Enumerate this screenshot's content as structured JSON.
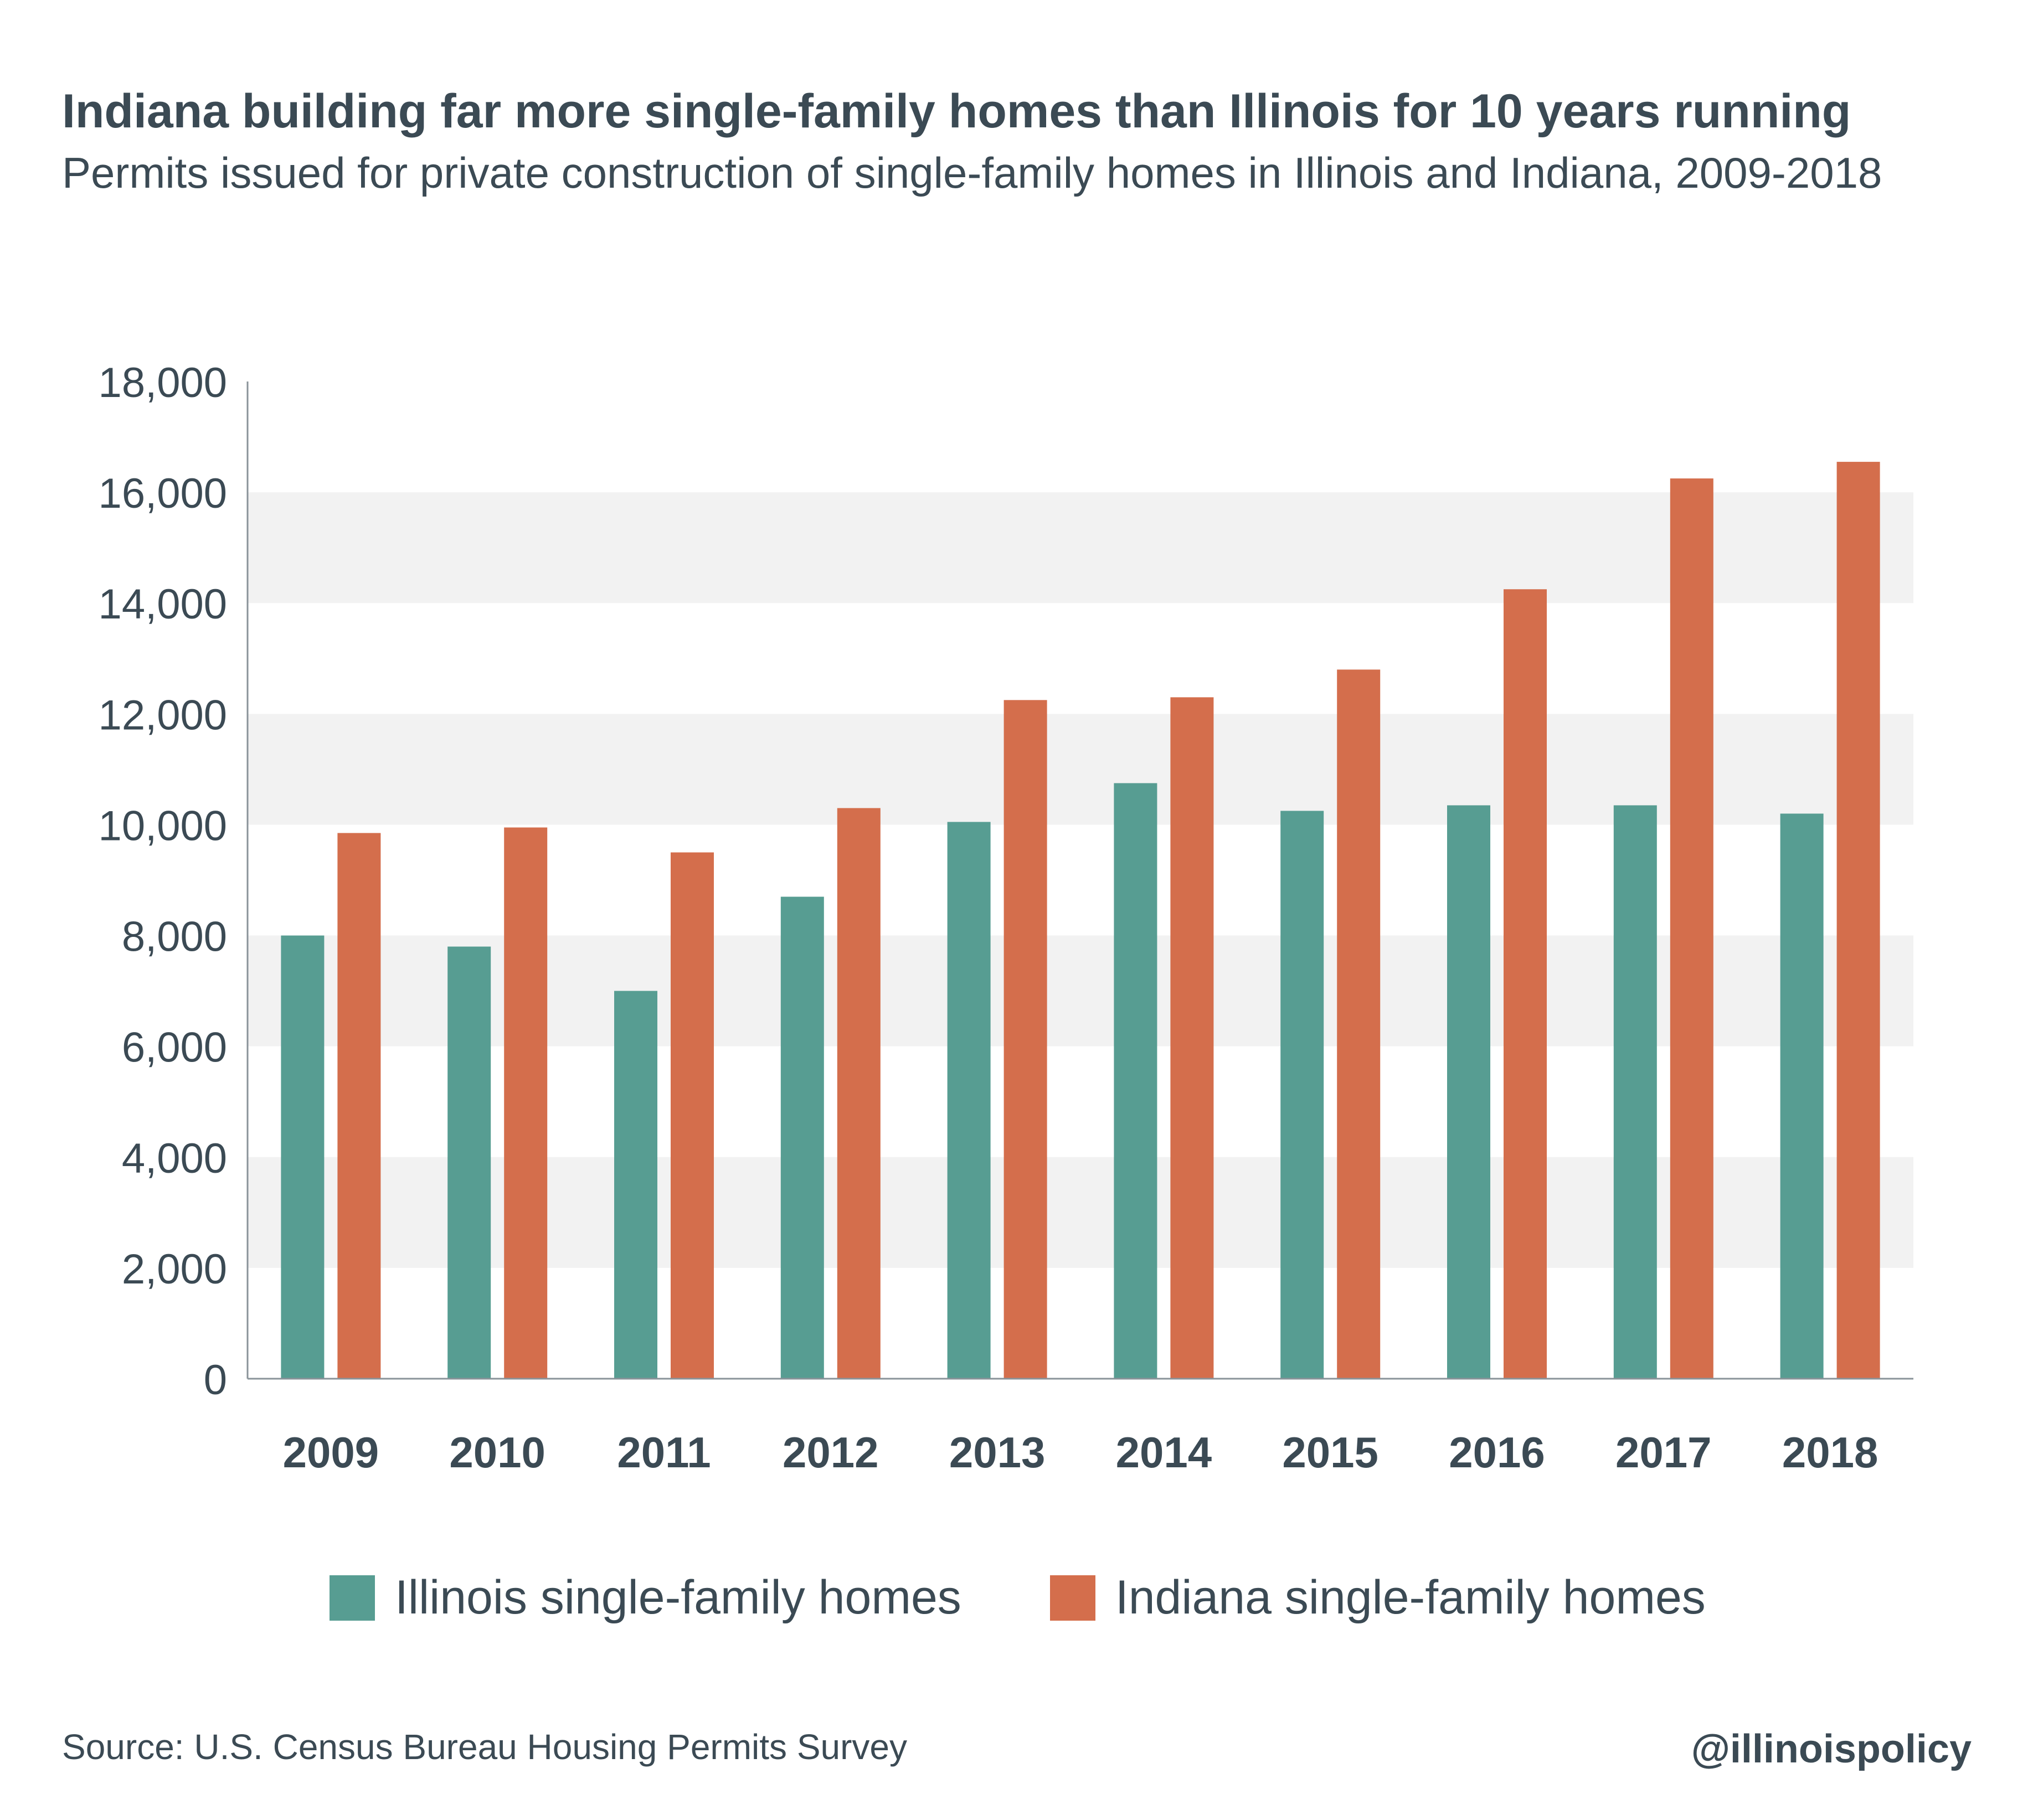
{
  "title": "Indiana building far more single-family homes than Illinois for 10 years running",
  "subtitle": "Permits issued for private construction of single-family homes in Illinois and Indiana, 2009-2018",
  "source": "Source: U.S. Census Bureau Housing Permits Survey",
  "handle": "@illinoispolicy",
  "colors": {
    "illinois": "#579d92",
    "indiana": "#d46e4c",
    "band": "#f2f2f2",
    "axis": "#8a9399",
    "text": "#3b4a54"
  },
  "chart_data": {
    "type": "bar",
    "categories": [
      "2009",
      "2010",
      "2011",
      "2012",
      "2013",
      "2014",
      "2015",
      "2016",
      "2017",
      "2018"
    ],
    "series": [
      {
        "name": "Illinois single-family homes",
        "color": "#579d92",
        "values": [
          8000,
          7800,
          7000,
          8700,
          10050,
          10750,
          10250,
          10350,
          10350,
          10200
        ]
      },
      {
        "name": "Indiana single-family homes",
        "color": "#d46e4c",
        "values": [
          9850,
          9950,
          9500,
          10300,
          12250,
          12300,
          12800,
          14250,
          16250,
          16550
        ]
      }
    ],
    "ylim": [
      0,
      18000
    ],
    "yticks": [
      "0",
      "2,000",
      "4,000",
      "6,000",
      "8,000",
      "10,000",
      "12,000",
      "14,000",
      "16,000",
      "18,000"
    ],
    "ytick_values": [
      0,
      2000,
      4000,
      6000,
      8000,
      10000,
      12000,
      14000,
      16000,
      18000
    ],
    "xlabel": "",
    "ylabel": "",
    "grid": "alternating horizontal bands",
    "legend_position": "bottom"
  }
}
